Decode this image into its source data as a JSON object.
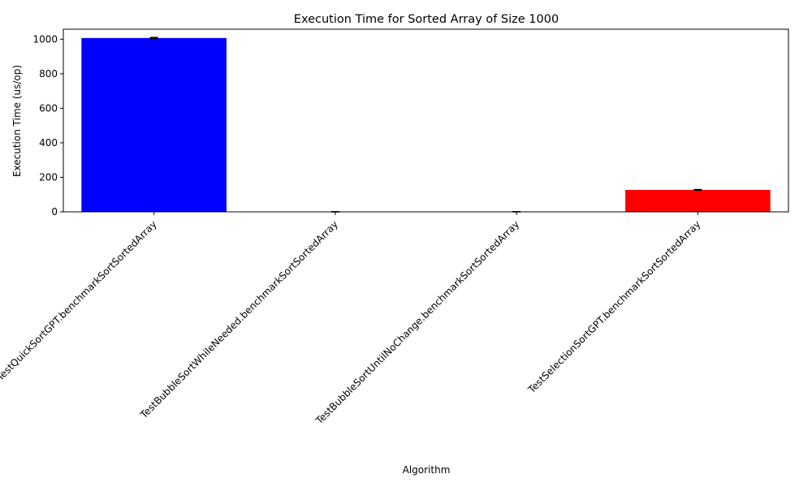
{
  "chart_data": {
    "type": "bar",
    "title": "Execution Time for Sorted Array of Size 1000",
    "xlabel": "Algorithm",
    "ylabel": "Execution Time (us/op)",
    "categories": [
      "TestQuickSortGPT.benchmarkSortSortedArray",
      "TestBubbleSortWhileNeeded.benchmarkSortSortedArray",
      "TestBubbleSortUntilNoChange.benchmarkSortSortedArray",
      "TestSelectionSortGPT.benchmarkSortSortedArray"
    ],
    "values": [
      1007,
      0.5,
      0.5,
      127
    ],
    "errors": [
      3,
      0.1,
      0.1,
      2
    ],
    "colors": [
      "#0000ff",
      "#008000",
      "#ffff00",
      "#ff0000"
    ],
    "ylim": [
      0,
      1058
    ],
    "yticks": [
      0,
      200,
      400,
      600,
      800,
      1000
    ],
    "grid": false,
    "legend": "none"
  }
}
